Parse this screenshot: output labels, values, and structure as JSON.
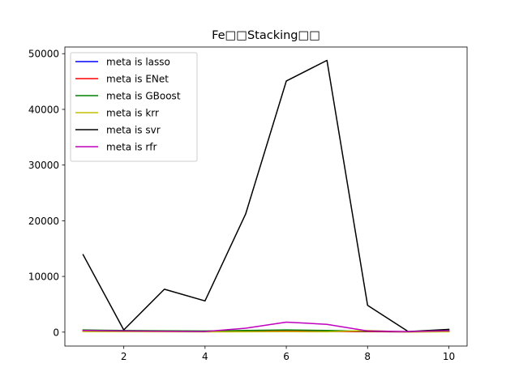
{
  "chart_data": {
    "type": "line",
    "title": "Fe□□Stacking□□",
    "xlabel": "",
    "ylabel": "",
    "xlim": [
      0.55,
      10.45
    ],
    "ylim": [
      -2500,
      51200
    ],
    "xticks": [
      2,
      4,
      6,
      8,
      10
    ],
    "yticks": [
      0,
      10000,
      20000,
      30000,
      40000,
      50000
    ],
    "grid": false,
    "legend_position": "top-left",
    "x": [
      1,
      2,
      3,
      4,
      5,
      6,
      7,
      8,
      9,
      10
    ],
    "series": [
      {
        "name": "meta is lasso",
        "color": "#0000ff",
        "values": [
          300,
          200,
          150,
          100,
          150,
          200,
          150,
          100,
          50,
          150
        ]
      },
      {
        "name": "meta is ENet",
        "color": "#ff0000",
        "values": [
          200,
          150,
          100,
          80,
          120,
          180,
          120,
          80,
          40,
          120
        ]
      },
      {
        "name": "meta is GBoost",
        "color": "#008000",
        "values": [
          400,
          300,
          250,
          200,
          300,
          400,
          300,
          150,
          80,
          300
        ]
      },
      {
        "name": "meta is krr",
        "color": "#bfbf00",
        "values": [
          100,
          80,
          60,
          40,
          60,
          80,
          60,
          300,
          30,
          60
        ]
      },
      {
        "name": "meta is svr",
        "color": "#000000",
        "values": [
          13900,
          400,
          7700,
          5600,
          21200,
          45100,
          48800,
          4800,
          100,
          500
        ]
      },
      {
        "name": "meta is rfr",
        "color": "#bf00bf",
        "values": [
          300,
          200,
          150,
          100,
          700,
          1800,
          1400,
          200,
          100,
          250
        ]
      }
    ]
  }
}
